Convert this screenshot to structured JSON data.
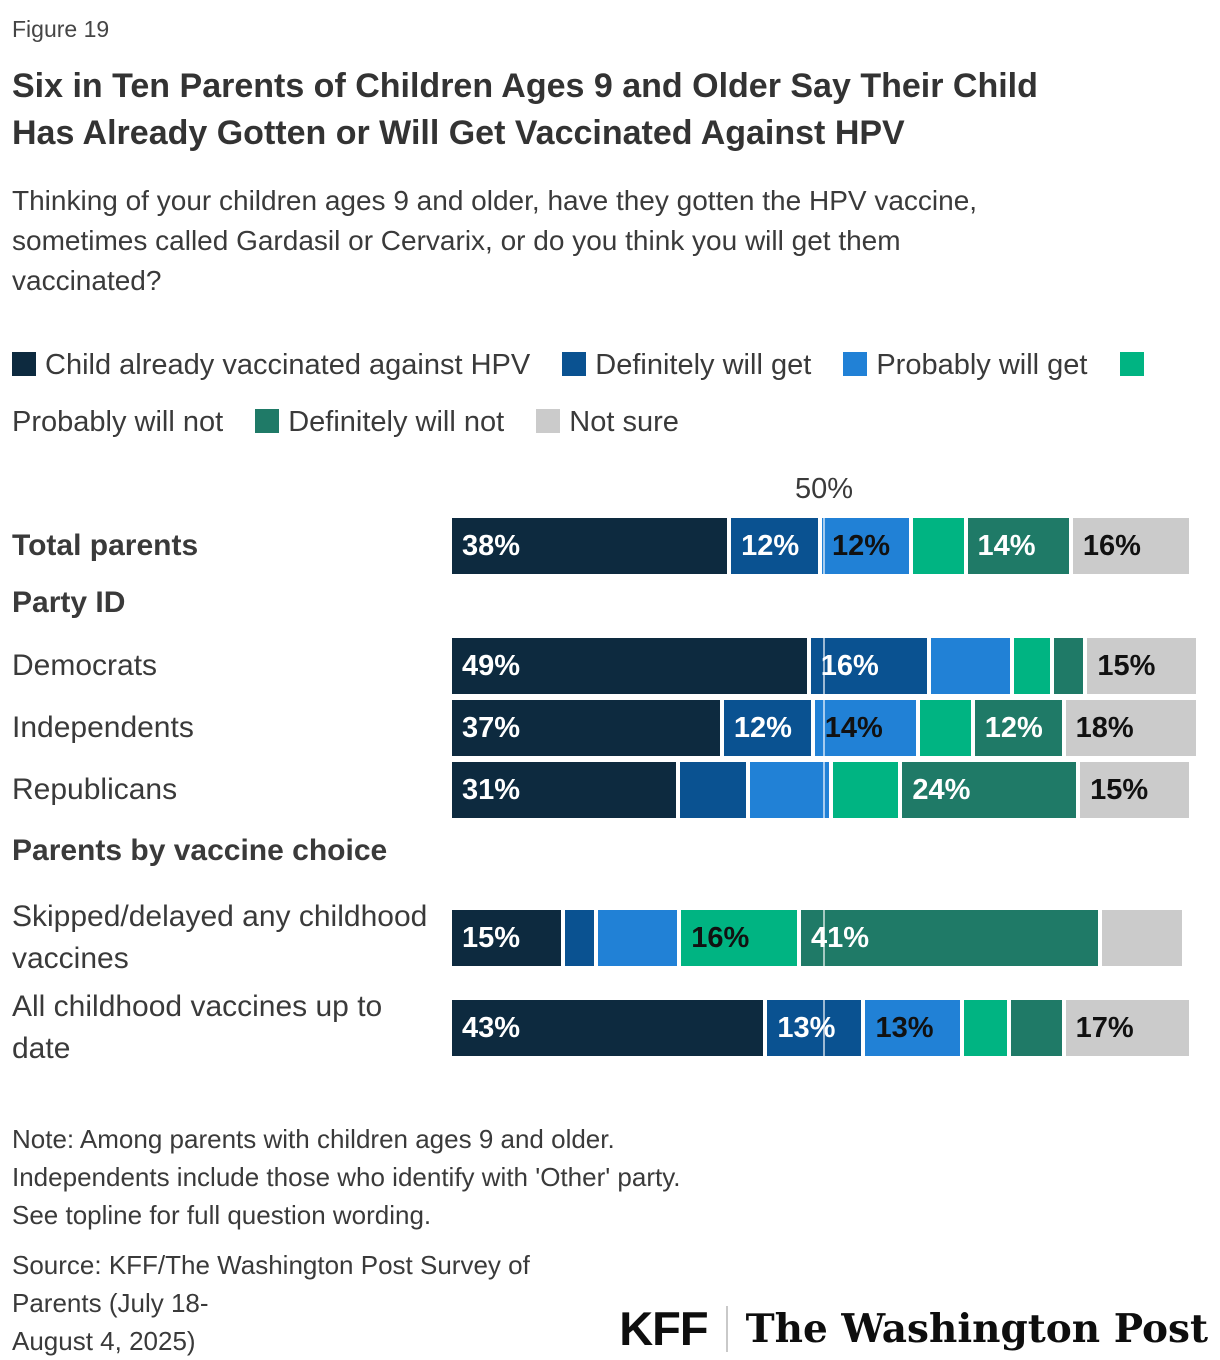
{
  "figure_label": "Figure 19",
  "header": {
    "title_lines": [
      "Six in Ten Parents of Children Ages 9 and Older Say Their Child",
      "Has Already Gotten or Will Get Vaccinated Against HPV"
    ],
    "subtitle_lines": [
      "Thinking of your children ages 9 and older, have they gotten the HPV vaccine,",
      "sometimes called Gardasil or Cervarix, or do you think you will get them",
      "vaccinated?"
    ]
  },
  "chart_data": {
    "type": "bar",
    "stacked": true,
    "orientation": "horizontal",
    "x_axis": {
      "max": 100,
      "gridline_value": 50,
      "gridline_label": "50%"
    },
    "legend": [
      {
        "name": "Child already vaccinated against HPV",
        "color": "#0d2a3f",
        "text_color": "#ffffff"
      },
      {
        "name": "Definitely will get",
        "color": "#0a5291",
        "text_color": "#ffffff"
      },
      {
        "name": "Probably will get",
        "color": "#2181d6",
        "text_color": "#111111"
      },
      {
        "name": "Probably will not",
        "color": "#00b482",
        "text_color": "#111111"
      },
      {
        "name": "Definitely will not",
        "color": "#1f7a67",
        "text_color": "#ffffff"
      },
      {
        "name": "Not sure",
        "color": "#cbcbcb",
        "text_color": "#111111"
      }
    ],
    "rows": [
      {
        "kind": "bar",
        "label": "Total parents",
        "bold": true,
        "segments": [
          {
            "value": 38,
            "label": "38%"
          },
          {
            "value": 12,
            "label": "12%"
          },
          {
            "value": 12,
            "label": "12%"
          },
          {
            "value": 7,
            "label": ""
          },
          {
            "value": 14,
            "label": "14%"
          },
          {
            "value": 16,
            "label": "16%"
          }
        ]
      },
      {
        "kind": "header",
        "label": "Party ID"
      },
      {
        "kind": "bar",
        "label": "Democrats",
        "bold": false,
        "segments": [
          {
            "value": 49,
            "label": "49%"
          },
          {
            "value": 16,
            "label": "16%"
          },
          {
            "value": 11,
            "label": ""
          },
          {
            "value": 5,
            "label": ""
          },
          {
            "value": 4,
            "label": ""
          },
          {
            "value": 15,
            "label": "15%"
          }
        ]
      },
      {
        "kind": "bar",
        "label": "Independents",
        "bold": false,
        "segments": [
          {
            "value": 37,
            "label": "37%"
          },
          {
            "value": 12,
            "label": "12%"
          },
          {
            "value": 14,
            "label": "14%"
          },
          {
            "value": 7,
            "label": ""
          },
          {
            "value": 12,
            "label": "12%"
          },
          {
            "value": 18,
            "label": "18%"
          }
        ]
      },
      {
        "kind": "bar",
        "label": "Republicans",
        "bold": false,
        "segments": [
          {
            "value": 31,
            "label": "31%"
          },
          {
            "value": 9,
            "label": ""
          },
          {
            "value": 11,
            "label": ""
          },
          {
            "value": 9,
            "label": ""
          },
          {
            "value": 24,
            "label": "24%"
          },
          {
            "value": 15,
            "label": "15%"
          }
        ]
      },
      {
        "kind": "header",
        "label": "Parents by vaccine choice"
      },
      {
        "kind": "bar",
        "label": "Skipped/delayed any childhood vaccines",
        "bold": false,
        "segments": [
          {
            "value": 15,
            "label": "15%"
          },
          {
            "value": 4,
            "label": ""
          },
          {
            "value": 11,
            "label": ""
          },
          {
            "value": 16,
            "label": "16%"
          },
          {
            "value": 41,
            "label": "41%"
          },
          {
            "value": 11,
            "label": ""
          }
        ]
      },
      {
        "kind": "bar",
        "label": "All childhood vaccines up to date",
        "bold": false,
        "segments": [
          {
            "value": 43,
            "label": "43%"
          },
          {
            "value": 13,
            "label": "13%"
          },
          {
            "value": 13,
            "label": "13%"
          },
          {
            "value": 6,
            "label": ""
          },
          {
            "value": 7,
            "label": ""
          },
          {
            "value": 17,
            "label": "17%"
          }
        ]
      }
    ]
  },
  "note_lines": [
    "Note: Among parents with children ages 9 and older.",
    "Independents include those who identify with 'Other' party.",
    "See topline for full question wording."
  ],
  "source_lines": [
    "Source: KFF/The Washington Post Survey of Parents (July 18-",
    "August 4, 2025)"
  ],
  "logos": {
    "kff": "KFF",
    "wapo": "The Washington Post"
  }
}
